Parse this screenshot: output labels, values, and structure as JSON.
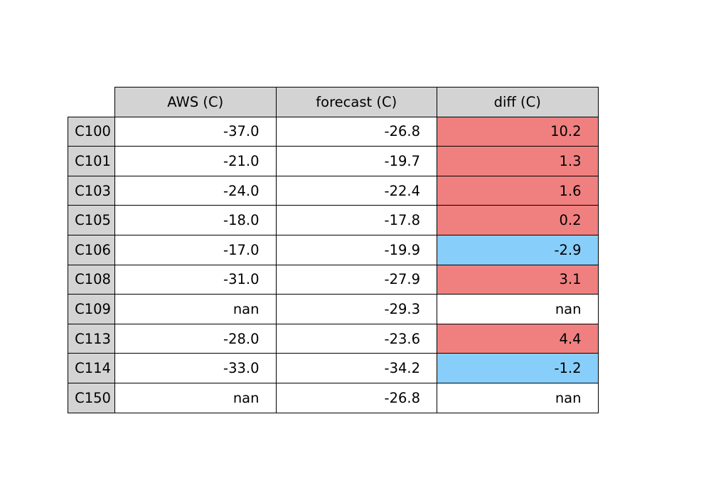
{
  "chart_data": {
    "type": "table",
    "columns": [
      "AWS (C)",
      "forecast (C)",
      "diff (C)"
    ],
    "rows": [
      {
        "label": "C100",
        "values": [
          "-37.0",
          "-26.8",
          "10.2"
        ],
        "diff_color": "#f08080"
      },
      {
        "label": "C101",
        "values": [
          "-21.0",
          "-19.7",
          "1.3"
        ],
        "diff_color": "#f08080"
      },
      {
        "label": "C103",
        "values": [
          "-24.0",
          "-22.4",
          "1.6"
        ],
        "diff_color": "#f08080"
      },
      {
        "label": "C105",
        "values": [
          "-18.0",
          "-17.8",
          "0.2"
        ],
        "diff_color": "#f08080"
      },
      {
        "label": "C106",
        "values": [
          "-17.0",
          "-19.9",
          "-2.9"
        ],
        "diff_color": "#87cefa"
      },
      {
        "label": "C108",
        "values": [
          "-31.0",
          "-27.9",
          "3.1"
        ],
        "diff_color": "#f08080"
      },
      {
        "label": "C109",
        "values": [
          "nan",
          "-29.3",
          "nan"
        ],
        "diff_color": "#ffffff"
      },
      {
        "label": "C113",
        "values": [
          "-28.0",
          "-23.6",
          "4.4"
        ],
        "diff_color": "#f08080"
      },
      {
        "label": "C114",
        "values": [
          "-33.0",
          "-34.2",
          "-1.2"
        ],
        "diff_color": "#87cefa"
      },
      {
        "label": "C150",
        "values": [
          "nan",
          "-26.8",
          "nan"
        ],
        "diff_color": "#ffffff"
      }
    ]
  },
  "colors": {
    "header_background": "#d3d3d3",
    "cell_background": "#ffffff",
    "positive_diff": "#f08080",
    "negative_diff": "#87cefa",
    "border": "#000000"
  }
}
